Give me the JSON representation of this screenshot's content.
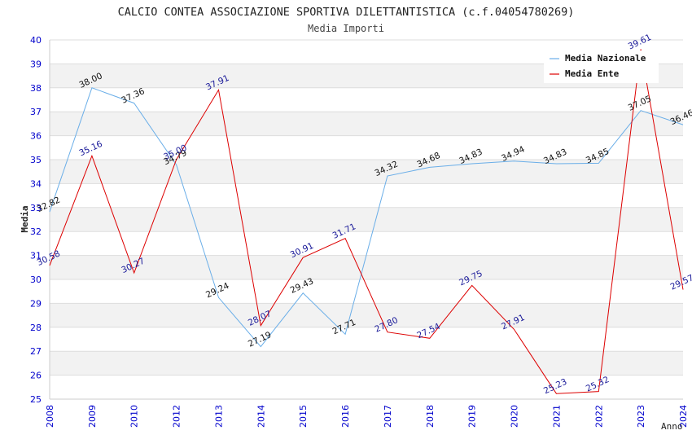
{
  "chart_data": {
    "type": "line",
    "title": "CALCIO CONTEA ASSOCIAZIONE SPORTIVA DILETTANTISTICA (c.f.04054780269)",
    "subtitle": "Media Importi",
    "ylabel": "Media",
    "xlabel": "Anno",
    "ylim": [
      25,
      40
    ],
    "yticks": [
      25,
      26,
      27,
      28,
      29,
      30,
      31,
      32,
      33,
      34,
      35,
      36,
      37,
      38,
      39,
      40
    ],
    "categories": [
      "2008",
      "2009",
      "2010",
      "2012",
      "2013",
      "2014",
      "2015",
      "2016",
      "2017",
      "2018",
      "2019",
      "2020",
      "2021",
      "2022",
      "2023",
      "2024"
    ],
    "series": [
      {
        "name": "Media Nazionale",
        "color": "#6aaee8",
        "values": [
          32.82,
          38.0,
          37.36,
          34.79,
          29.24,
          27.19,
          29.43,
          27.71,
          34.32,
          34.68,
          34.83,
          34.94,
          34.83,
          34.85,
          37.05,
          36.46
        ],
        "labels": [
          "32.82",
          "38.00",
          "37.36",
          "34.79",
          "29.24",
          "27.19",
          "29.43",
          "27.71",
          "34.32",
          "34.68",
          "34.83",
          "34.94",
          "34.83",
          "34.85",
          "37.05",
          "36.46"
        ]
      },
      {
        "name": "Media Ente",
        "color": "#dd0000",
        "values": [
          30.58,
          35.16,
          30.27,
          35.0,
          37.91,
          28.07,
          30.91,
          31.71,
          27.8,
          27.54,
          29.75,
          27.91,
          25.23,
          25.32,
          39.61,
          29.57
        ],
        "labels": [
          "30.58",
          "35.16",
          "30.27",
          "35.00",
          "37.91",
          "28.07",
          "30.91",
          "31.71",
          "27.80",
          "27.54",
          "29.75",
          "27.91",
          "25.23",
          "25.32",
          "39.61",
          "29.57"
        ]
      }
    ],
    "legend_position": "top-right",
    "grid": true
  }
}
